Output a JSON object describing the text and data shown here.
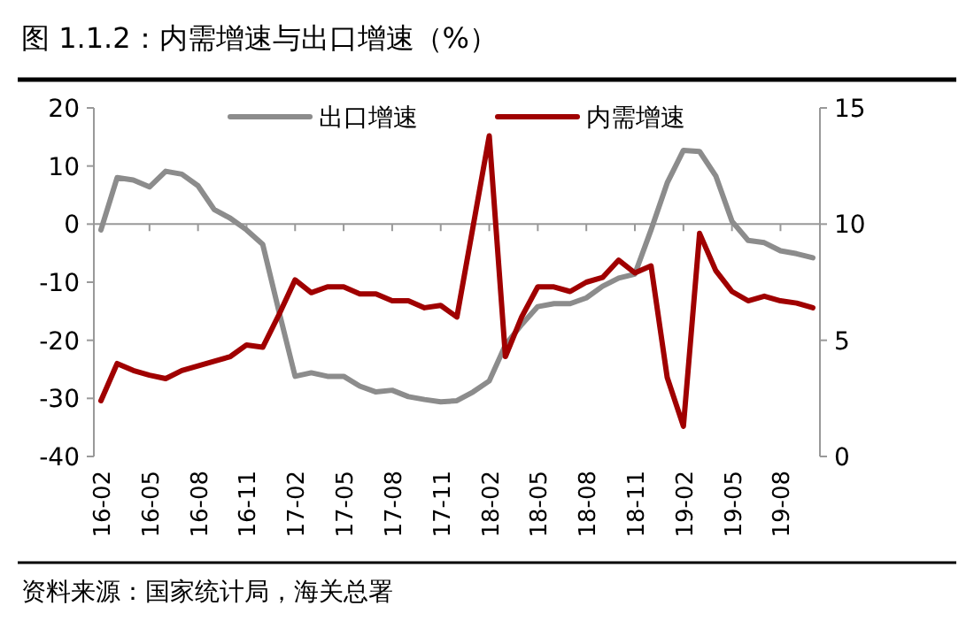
{
  "chart_data": {
    "type": "line",
    "title": "图 1.1.2：内需增速与出口增速（%）",
    "categories": [
      "16-02",
      null,
      null,
      "16-05",
      null,
      null,
      "16-08",
      null,
      null,
      "16-11",
      null,
      null,
      "17-02",
      null,
      null,
      "17-05",
      null,
      null,
      "17-08",
      null,
      null,
      "17-11",
      null,
      null,
      "18-02",
      null,
      null,
      "18-05",
      null,
      null,
      "18-08",
      null,
      null,
      "18-11",
      null,
      null,
      "19-02",
      null,
      null,
      "19-05",
      null,
      null,
      "19-08",
      null,
      null
    ],
    "series": [
      {
        "name": "出口增速",
        "color": "#8c8c8c",
        "values": [
          -1,
          8,
          7.6,
          6.4,
          9.1,
          8.6,
          6.6,
          2.5,
          1,
          -1,
          -3.5,
          -15,
          -26.2,
          -25.6,
          -26.2,
          -26.2,
          -27.9,
          -28.9,
          -28.6,
          -29.7,
          -30.2,
          -30.6,
          -30.4,
          -28.9,
          -27,
          -20.8,
          -17.3,
          -14.2,
          -13.7,
          -13.7,
          -12.7,
          -10.7,
          -9.3,
          -8.6,
          -1,
          7.1,
          12.7,
          12.5,
          8.3,
          0.5,
          -2.8,
          -3.2,
          -4.6,
          -5.1,
          -5.8
        ]
      },
      {
        "name": "内需增速",
        "color": "#a00000",
        "axis": "y2",
        "values": [
          2.4,
          4.0,
          3.7,
          3.5,
          3.35,
          3.7,
          3.9,
          4.1,
          4.3,
          4.8,
          4.7,
          6.1,
          7.6,
          7.05,
          7.3,
          7.3,
          7.0,
          7.0,
          6.7,
          6.7,
          6.4,
          6.5,
          6.0,
          9.9,
          13.8,
          4.3,
          6.0,
          7.3,
          7.3,
          7.1,
          7.5,
          7.7,
          8.45,
          7.9,
          8.2,
          3.4,
          1.3,
          9.6,
          8.0,
          7.1,
          6.7,
          6.9,
          6.7,
          6.6,
          6.4
        ]
      }
    ],
    "ylim": [
      -40,
      20
    ],
    "yticks": [
      -40,
      -30,
      -20,
      -10,
      0,
      10,
      20
    ],
    "y2lim": [
      0,
      15
    ],
    "y2ticks": [
      0,
      5,
      10,
      15
    ],
    "legend": "top",
    "grid": false,
    "ref_lines": [
      {
        "axis": "y",
        "value": 0,
        "color": "#999999"
      }
    ],
    "annotations": [
      "资料来源：国家统计局，海关总署"
    ]
  }
}
